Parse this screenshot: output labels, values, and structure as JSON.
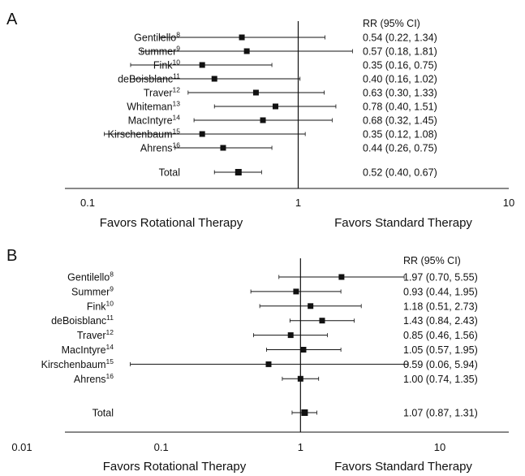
{
  "chart_data": [
    {
      "type": "forest",
      "panel_label": "A",
      "scale": "log",
      "xlim": [
        0.1,
        10
      ],
      "x_ticks": [
        "0.1",
        "1",
        "10"
      ],
      "reference_line": 1,
      "rr_header": "RR   (95% CI)",
      "favors_left": "Favors Rotational Therapy",
      "favors_right": "Favors Standard Therapy",
      "studies": [
        {
          "name": "Gentilello",
          "ref": "8",
          "rr": 0.54,
          "lo": 0.22,
          "hi": 1.34,
          "text": "0.54 (0.22, 1.34)"
        },
        {
          "name": "Summer",
          "ref": "9",
          "rr": 0.57,
          "lo": 0.18,
          "hi": 1.81,
          "text": "0.57 (0.18, 1.81)"
        },
        {
          "name": "Fink",
          "ref": "10",
          "rr": 0.35,
          "lo": 0.16,
          "hi": 0.75,
          "text": "0.35 (0.16, 0.75)"
        },
        {
          "name": "deBoisblanc",
          "ref": "11",
          "rr": 0.4,
          "lo": 0.16,
          "hi": 1.02,
          "text": "0.40 (0.16, 1.02)"
        },
        {
          "name": "Traver",
          "ref": "12",
          "rr": 0.63,
          "lo": 0.3,
          "hi": 1.33,
          "text": "0.63 (0.30, 1.33)"
        },
        {
          "name": "Whiteman",
          "ref": "13",
          "rr": 0.78,
          "lo": 0.4,
          "hi": 1.51,
          "text": "0.78 (0.40, 1.51)"
        },
        {
          "name": "MacIntyre",
          "ref": "14",
          "rr": 0.68,
          "lo": 0.32,
          "hi": 1.45,
          "text": "0.68 (0.32, 1.45)"
        },
        {
          "name": "Kirschenbaum",
          "ref": "15",
          "rr": 0.35,
          "lo": 0.12,
          "hi": 1.08,
          "text": "0.35 (0.12, 1.08)"
        },
        {
          "name": "Ahrens",
          "ref": "16",
          "rr": 0.44,
          "lo": 0.26,
          "hi": 0.75,
          "text": "0.44 (0.26, 0.75)"
        }
      ],
      "total": {
        "name": "Total",
        "rr": 0.52,
        "lo": 0.4,
        "hi": 0.67,
        "text": "0.52 (0.40, 0.67)"
      }
    },
    {
      "type": "forest",
      "panel_label": "B",
      "scale": "log",
      "xlim": [
        0.01,
        10
      ],
      "x_ticks": [
        "0.01",
        "0.1",
        "1",
        "10"
      ],
      "reference_line": 1,
      "rr_header": "RR   (95% CI)",
      "favors_left": "Favors Rotational Therapy",
      "favors_right": "Favors Standard Therapy",
      "studies": [
        {
          "name": "Gentilello",
          "ref": "8",
          "rr": 1.97,
          "lo": 0.7,
          "hi": 5.55,
          "text": "1.97 (0.70, 5.55)"
        },
        {
          "name": "Summer",
          "ref": "9",
          "rr": 0.93,
          "lo": 0.44,
          "hi": 1.95,
          "text": "0.93 (0.44, 1.95)"
        },
        {
          "name": "Fink",
          "ref": "10",
          "rr": 1.18,
          "lo": 0.51,
          "hi": 2.73,
          "text": "1.18 (0.51, 2.73)"
        },
        {
          "name": "deBoisblanc",
          "ref": "11",
          "rr": 1.43,
          "lo": 0.84,
          "hi": 2.43,
          "text": "1.43 (0.84, 2.43)"
        },
        {
          "name": "Traver",
          "ref": "12",
          "rr": 0.85,
          "lo": 0.46,
          "hi": 1.56,
          "text": "0.85 (0.46, 1.56)"
        },
        {
          "name": "MacIntyre",
          "ref": "14",
          "rr": 1.05,
          "lo": 0.57,
          "hi": 1.95,
          "text": "1.05 (0.57, 1.95)"
        },
        {
          "name": "Kirschenbaum",
          "ref": "15",
          "rr": 0.59,
          "lo": 0.06,
          "hi": 5.94,
          "text": "0.59 (0.06, 5.94)"
        },
        {
          "name": "Ahrens",
          "ref": "16",
          "rr": 1.0,
          "lo": 0.74,
          "hi": 1.35,
          "text": "1.00 (0.74, 1.35)"
        }
      ],
      "total": {
        "name": "Total",
        "rr": 1.07,
        "lo": 0.87,
        "hi": 1.31,
        "text": "1.07 (0.87, 1.31)"
      }
    }
  ]
}
